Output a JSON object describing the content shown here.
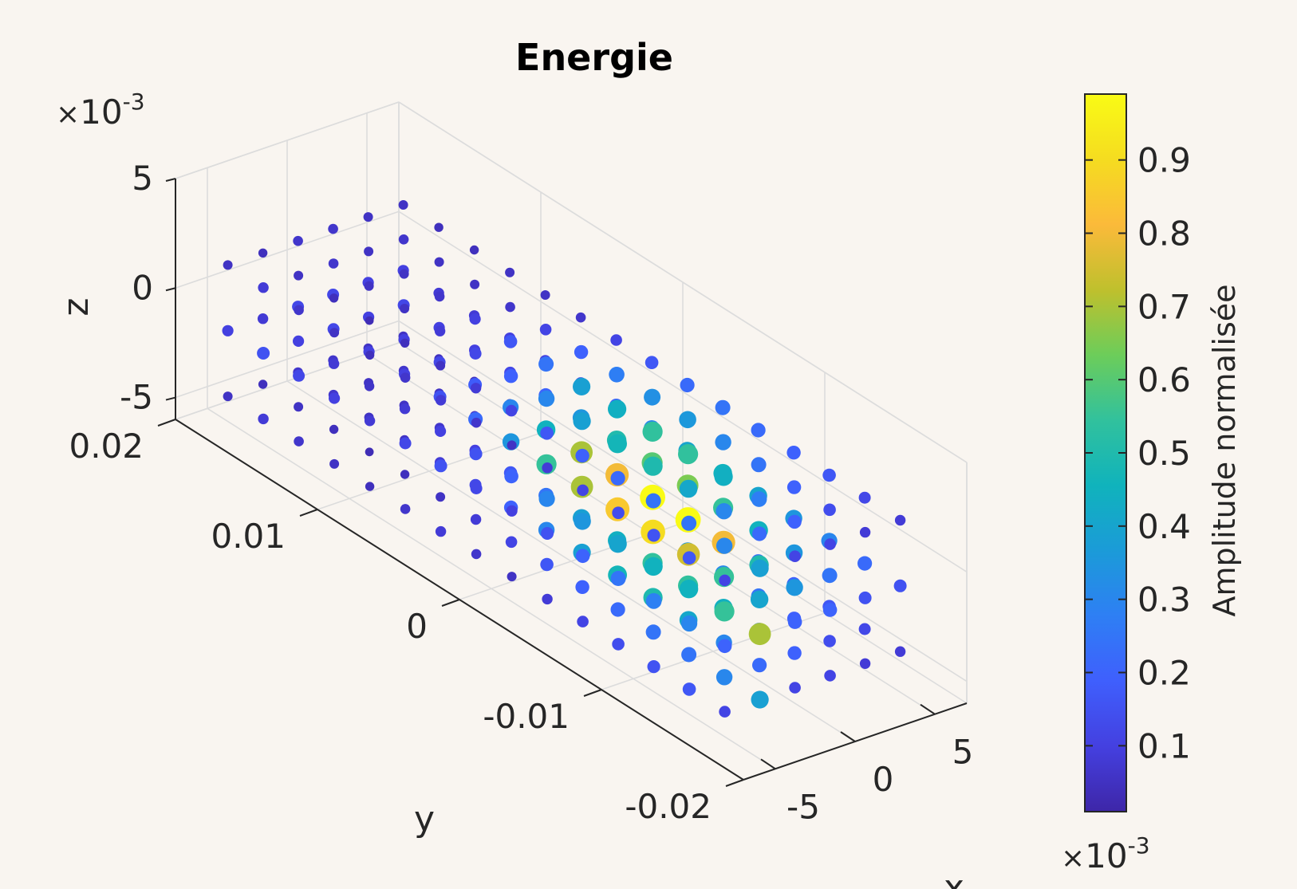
{
  "chart_data": {
    "type": "scatter",
    "title": "Energie",
    "xlabel": "x",
    "ylabel": "y",
    "zlabel": "z",
    "xlim": [
      -0.007,
      0.007
    ],
    "ylim": [
      -0.02,
      0.02
    ],
    "zlim": [
      -0.006,
      0.005
    ],
    "x_ticks": [
      "-5",
      "0",
      "5"
    ],
    "y_ticks": [
      "-0.02",
      "-0.01",
      "0",
      "0.01",
      "0.02"
    ],
    "z_ticks": [
      "-5",
      "0",
      "5"
    ],
    "x_exponent": "10",
    "x_exponent_power": "-3",
    "z_exponent": "10",
    "z_exponent_power": "-3",
    "colorbar": {
      "label": "Amplitude normalisée",
      "ticks": [
        "0.1",
        "0.2",
        "0.3",
        "0.4",
        "0.5",
        "0.6",
        "0.7",
        "0.8",
        "0.9"
      ],
      "range": [
        0.01,
        0.99
      ],
      "exponent": "10",
      "exponent_power": "-3",
      "colormap": [
        "#3e26a8",
        "#4440e0",
        "#3f5ffd",
        "#2e7ff4",
        "#1b9bd8",
        "#10b3bc",
        "#31c19d",
        "#6ccd5a",
        "#bfc02d",
        "#fbba3a",
        "#f5dc20",
        "#f9fb15"
      ]
    },
    "grid": "on",
    "rows_x": [
      -0.0055,
      -0.0033,
      -0.0011,
      0.0011,
      0.0033,
      0.0055
    ],
    "rows_z": [
      -0.0045,
      -0.0015,
      0.0015
    ],
    "columns_y": [
      0.018,
      0.0155,
      0.013,
      0.0105,
      0.008,
      0.0055,
      0.003,
      0.0005,
      -0.002,
      -0.0045,
      -0.007,
      -0.0095,
      -0.012,
      -0.0145,
      -0.017
    ],
    "amplitude_rows": [
      [
        0.1,
        0.15,
        0.12,
        0.1,
        0.08,
        0.12,
        0.15,
        0.12,
        0.1,
        0.15,
        0.2,
        0.25,
        0.28,
        0.3,
        0.2
      ],
      [
        0.08,
        0.1,
        0.08,
        0.06,
        0.08,
        0.1,
        0.15,
        0.2,
        0.3,
        0.35,
        0.4,
        0.45,
        0.45,
        0.55,
        0.7
      ],
      [
        0.12,
        0.12,
        0.1,
        0.1,
        0.15,
        0.22,
        0.35,
        0.55,
        0.7,
        0.85,
        0.9,
        0.75,
        0.55,
        0.4,
        0.2
      ],
      [
        0.12,
        0.1,
        0.1,
        0.12,
        0.18,
        0.3,
        0.45,
        0.7,
        0.8,
        0.99,
        0.99,
        0.8,
        0.5,
        0.35,
        0.2
      ],
      [
        0.1,
        0.12,
        0.1,
        0.1,
        0.12,
        0.2,
        0.35,
        0.5,
        0.6,
        0.65,
        0.55,
        0.45,
        0.35,
        0.25,
        0.15
      ],
      [
        0.1,
        0.08,
        0.08,
        0.1,
        0.1,
        0.12,
        0.2,
        0.3,
        0.4,
        0.45,
        0.4,
        0.35,
        0.3,
        0.22,
        0.15
      ]
    ]
  }
}
